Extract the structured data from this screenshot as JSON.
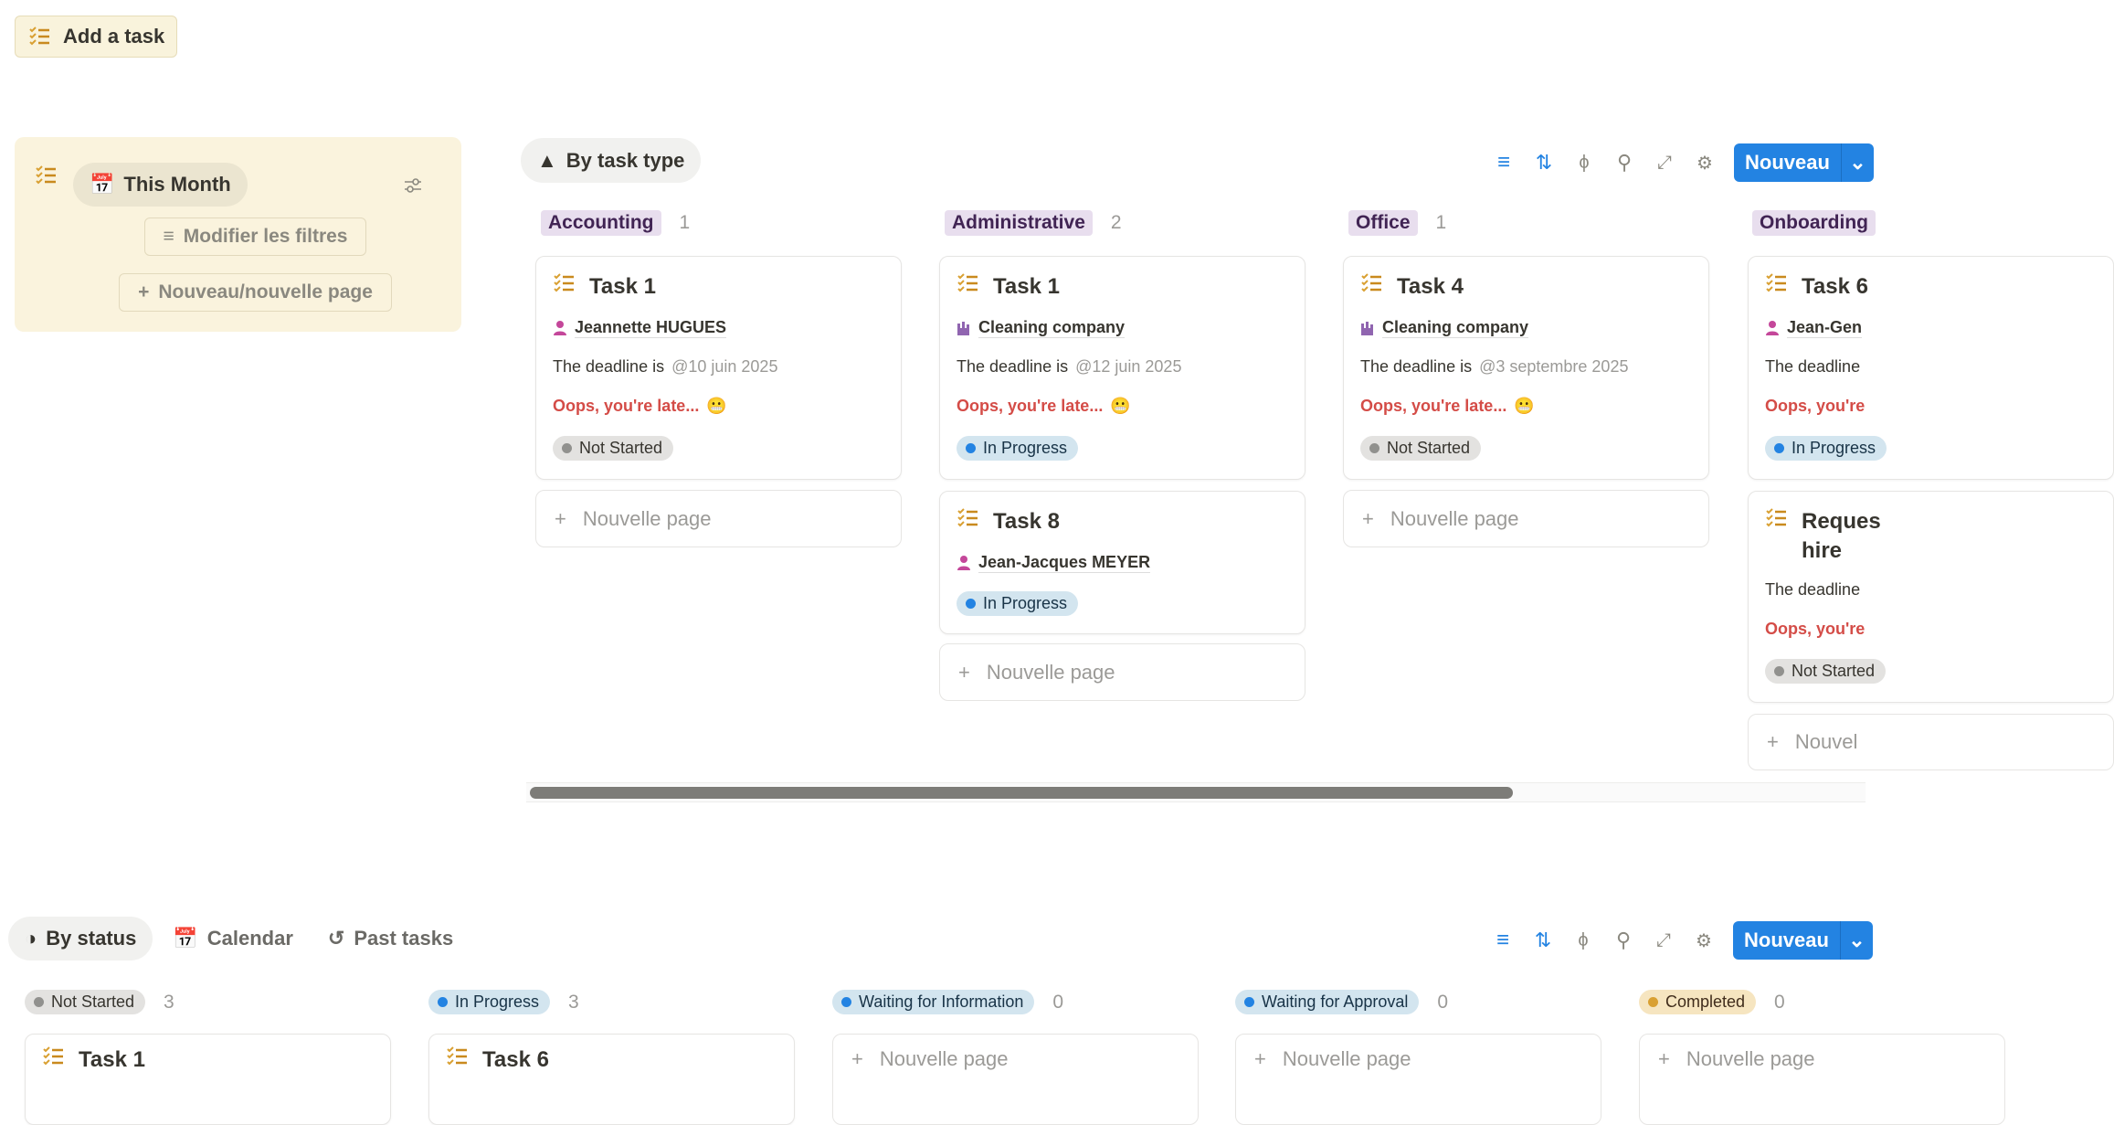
{
  "header": {
    "add_task_label": "Add a task"
  },
  "filter_panel": {
    "view_label": "This Month",
    "modify_filters_label": "Modifier les filtres",
    "new_page_label": "Nouveau/nouvelle page"
  },
  "type_board": {
    "view_label": "By task type",
    "new_button_label": "Nouveau",
    "columns": [
      {
        "tag": "Accounting",
        "count": "1",
        "cards": [
          {
            "title": "Task 1",
            "assignee": "Jeannette HUGUES",
            "assignee_icon": "person-icon",
            "deadline_prefix": "The deadline is",
            "deadline": "@10 juin 2025",
            "late": "Oops, you're late...",
            "status": "Not Started"
          }
        ],
        "new_page_label": "Nouvelle page"
      },
      {
        "tag": "Administrative",
        "count": "2",
        "cards": [
          {
            "title": "Task 1",
            "assignee": "Cleaning company",
            "assignee_icon": "company-icon",
            "deadline_prefix": "The deadline is",
            "deadline": "@12 juin 2025",
            "late": "Oops, you're late...",
            "status": "In Progress"
          },
          {
            "title": "Task 8",
            "assignee": "Jean-Jacques MEYER",
            "assignee_icon": "person-icon",
            "status": "In Progress"
          }
        ],
        "new_page_label": "Nouvelle page"
      },
      {
        "tag": "Office",
        "count": "1",
        "cards": [
          {
            "title": "Task 4",
            "assignee": "Cleaning company",
            "assignee_icon": "company-icon",
            "deadline_prefix": "The deadline is",
            "deadline": "@3 septembre 2025",
            "late": "Oops, you're late...",
            "status": "Not Started"
          }
        ],
        "new_page_label": "Nouvelle page"
      },
      {
        "tag": "Onboarding",
        "cards": [
          {
            "title": "Task 6",
            "assignee": "Jean-Gen",
            "deadline_prefix": "The deadline",
            "late": "Oops, you're",
            "status": "In Progress"
          },
          {
            "title": "Reques hire",
            "deadline_prefix": "The deadline",
            "late": "Oops, you're",
            "status": "Not Started"
          }
        ],
        "new_page_label": "Nouvel"
      }
    ]
  },
  "status_board": {
    "tabs": [
      {
        "label": "By status",
        "active": true
      },
      {
        "label": "Calendar"
      },
      {
        "label": "Past tasks"
      }
    ],
    "new_button_label": "Nouveau",
    "columns": [
      {
        "status": "Not Started",
        "count": "3",
        "card_title": "Task 1"
      },
      {
        "status": "In Progress",
        "count": "3",
        "card_title": "Task 6"
      },
      {
        "status": "Waiting for Information",
        "count": "0",
        "new_page_label": "Nouvelle page"
      },
      {
        "status": "Waiting for Approval",
        "count": "0",
        "new_page_label": "Nouvelle page"
      },
      {
        "status": "Completed",
        "count": "0",
        "new_page_label": "Nouvelle page"
      }
    ]
  },
  "colors": {
    "accent": "#2383e2",
    "panel": "#faf3dd",
    "late": "#d44c47",
    "tag": "#e8deee",
    "not_started_dot": "#91918e",
    "in_progress_dot": "#2383e2",
    "completed_dot": "#d9a032"
  }
}
